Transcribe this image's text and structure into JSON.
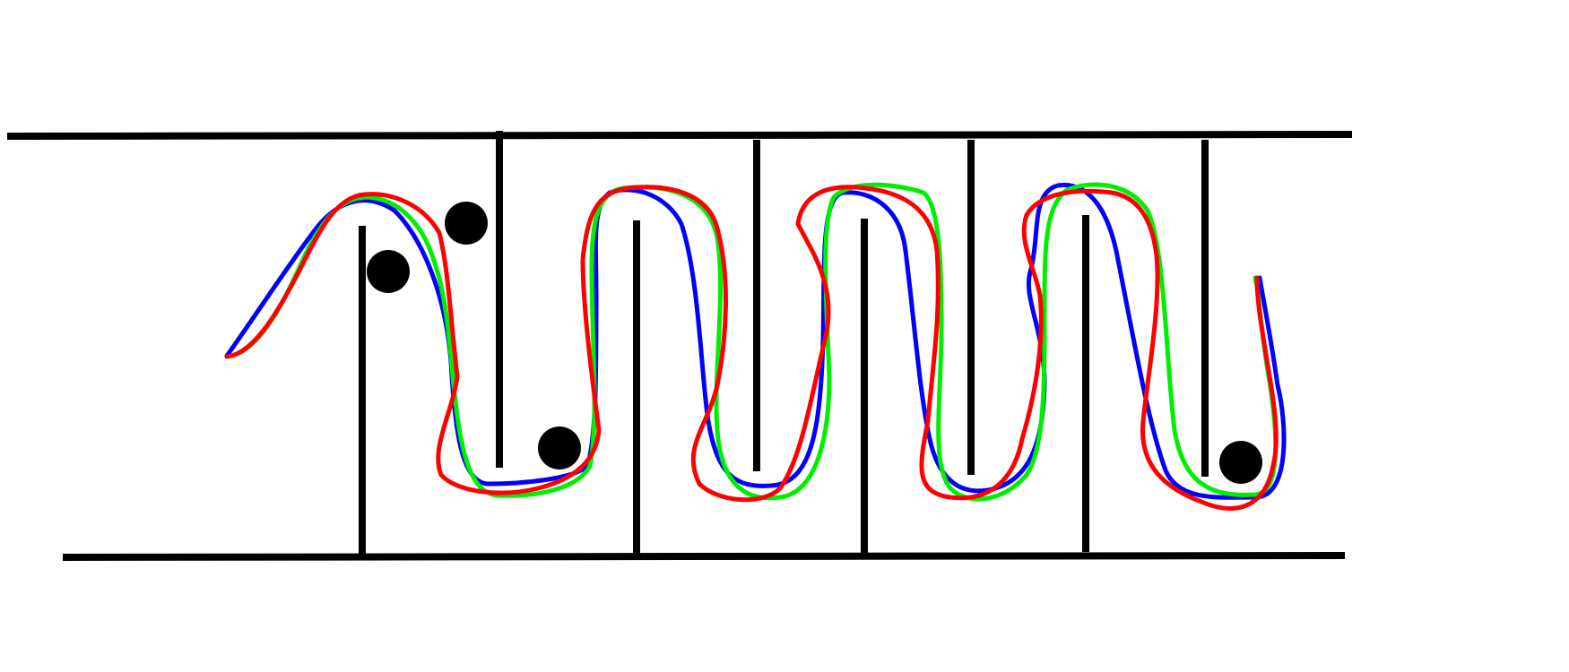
{
  "diagram": {
    "paths": [
      {
        "color": "#0000ff"
      },
      {
        "color": "#00ee00"
      },
      {
        "color": "#ff0000"
      }
    ],
    "obstacle_color": "#000000",
    "wall_color": "#000000",
    "background": "#ffffff"
  }
}
